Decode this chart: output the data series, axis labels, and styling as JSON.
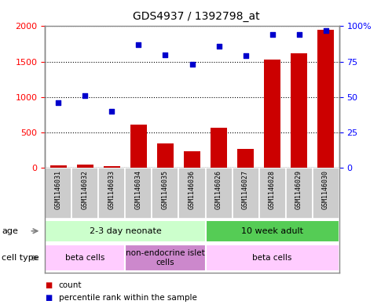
{
  "title": "GDS4937 / 1392798_at",
  "samples": [
    "GSM1146031",
    "GSM1146032",
    "GSM1146033",
    "GSM1146034",
    "GSM1146035",
    "GSM1146036",
    "GSM1146026",
    "GSM1146027",
    "GSM1146028",
    "GSM1146029",
    "GSM1146030"
  ],
  "counts": [
    30,
    50,
    20,
    610,
    340,
    230,
    570,
    270,
    1530,
    1620,
    1950
  ],
  "percentiles": [
    46,
    51,
    40,
    87,
    80,
    73,
    86,
    79,
    94,
    94,
    97
  ],
  "ylim_left": [
    0,
    2000
  ],
  "ylim_right": [
    0,
    100
  ],
  "yticks_left": [
    0,
    500,
    1000,
    1500,
    2000
  ],
  "yticks_right": [
    0,
    25,
    50,
    75,
    100
  ],
  "bar_color": "#cc0000",
  "scatter_color": "#0000cc",
  "age_groups": [
    {
      "label": "2-3 day neonate",
      "start": 0,
      "end": 6,
      "color": "#ccffcc"
    },
    {
      "label": "10 week adult",
      "start": 6,
      "end": 11,
      "color": "#55cc55"
    }
  ],
  "cell_type_groups": [
    {
      "label": "beta cells",
      "start": 0,
      "end": 3,
      "color": "#ffccff"
    },
    {
      "label": "non-endocrine islet\ncells",
      "start": 3,
      "end": 6,
      "color": "#cc88cc"
    },
    {
      "label": "beta cells",
      "start": 6,
      "end": 11,
      "color": "#ffccff"
    }
  ],
  "bg_color": "#ffffff",
  "tick_label_bg": "#cccccc",
  "legend_items": [
    {
      "color": "#cc0000",
      "label": "count"
    },
    {
      "color": "#0000cc",
      "label": "percentile rank within the sample"
    }
  ],
  "outer_border_color": "#888888"
}
